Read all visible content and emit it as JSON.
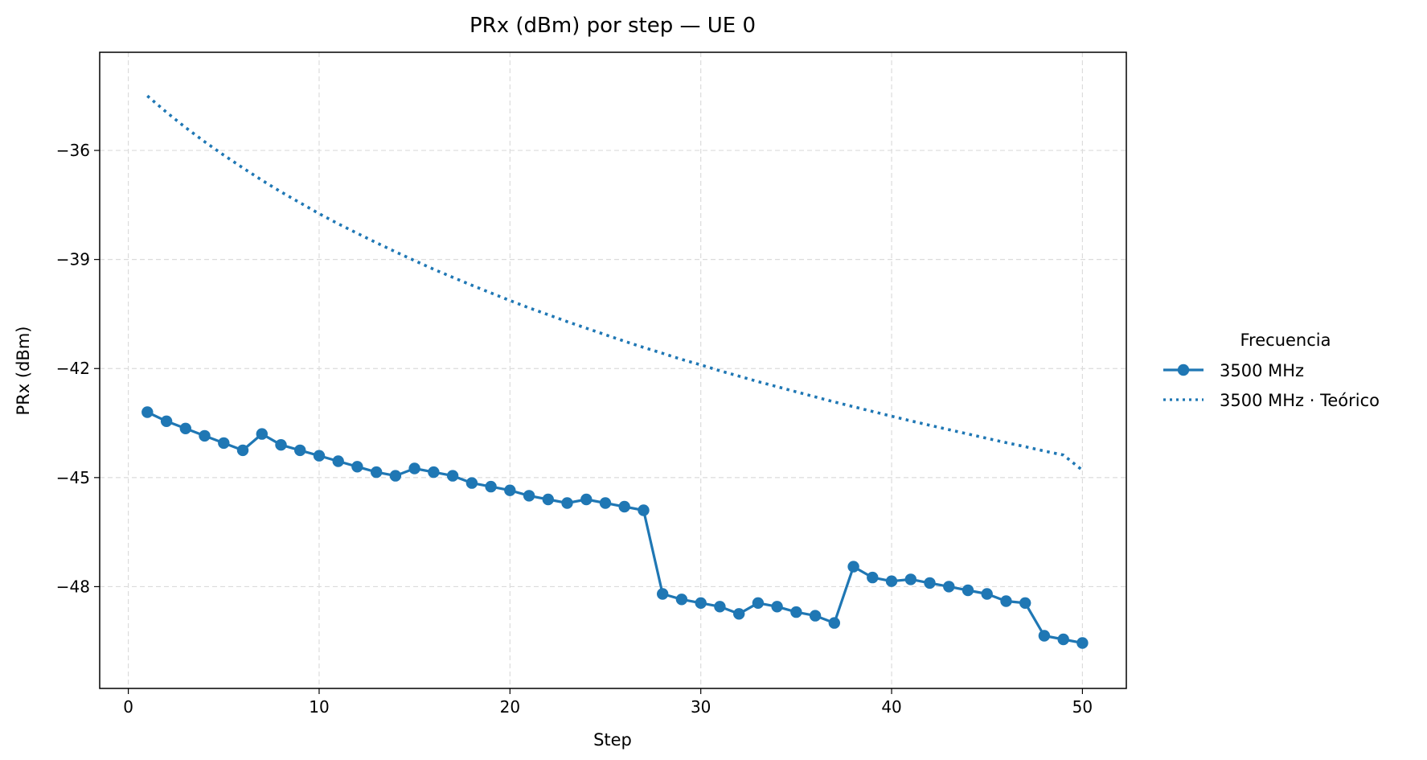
{
  "chart_data": {
    "type": "line",
    "title": "PRx (dBm) por step — UE 0",
    "xlabel": "Step",
    "ylabel": "PRx (dBm)",
    "xlim": [
      -1.5,
      52.3
    ],
    "ylim": [
      -50.8,
      -33.3
    ],
    "xticks": [
      0,
      10,
      20,
      30,
      40,
      50
    ],
    "yticks": [
      -36,
      -39,
      -42,
      -45,
      -48
    ],
    "grid": true,
    "legend": {
      "title": "Frecuencia",
      "placement": "right-outside",
      "entries": [
        "3500 MHz",
        "3500 MHz · Teórico"
      ]
    },
    "colors": {
      "series": "#1f77b4"
    },
    "series": [
      {
        "name": "3500 MHz",
        "style": "solid-marker",
        "x": [
          1,
          2,
          3,
          4,
          5,
          6,
          7,
          8,
          9,
          10,
          11,
          12,
          13,
          14,
          15,
          16,
          17,
          18,
          19,
          20,
          21,
          22,
          23,
          24,
          25,
          26,
          27,
          28,
          29,
          30,
          31,
          32,
          33,
          34,
          35,
          36,
          37,
          38,
          39,
          40,
          41,
          42,
          43,
          44,
          45,
          46,
          47,
          48,
          49,
          50
        ],
        "y": [
          -43.2,
          -43.45,
          -43.65,
          -43.85,
          -44.05,
          -44.25,
          -43.8,
          -44.1,
          -44.25,
          -44.4,
          -44.55,
          -44.7,
          -44.85,
          -44.95,
          -44.75,
          -44.85,
          -44.95,
          -45.15,
          -45.25,
          -45.35,
          -45.5,
          -45.6,
          -45.7,
          -45.6,
          -45.7,
          -45.8,
          -45.9,
          -48.2,
          -48.35,
          -48.45,
          -48.55,
          -48.75,
          -48.45,
          -48.55,
          -48.7,
          -48.8,
          -49.0,
          -47.45,
          -47.75,
          -47.85,
          -47.8,
          -47.9,
          -48.0,
          -48.1,
          -48.2,
          -48.4,
          -48.45,
          -49.35,
          -49.45,
          -49.55
        ]
      },
      {
        "name": "3500 MHz · Teórico",
        "style": "dotted",
        "x": [
          1,
          2,
          3,
          4,
          5,
          6,
          7,
          8,
          9,
          10,
          11,
          12,
          13,
          14,
          15,
          16,
          17,
          18,
          19,
          20,
          21,
          22,
          23,
          24,
          25,
          26,
          27,
          28,
          29,
          30,
          31,
          32,
          33,
          34,
          35,
          36,
          37,
          38,
          39,
          40,
          41,
          42,
          43,
          44,
          45,
          46,
          47,
          48,
          49,
          50
        ],
        "y": [
          -34.5,
          -34.95,
          -35.37,
          -35.76,
          -36.13,
          -36.48,
          -36.82,
          -37.14,
          -37.44,
          -37.74,
          -38.02,
          -38.28,
          -38.54,
          -38.79,
          -39.03,
          -39.27,
          -39.49,
          -39.71,
          -39.92,
          -40.13,
          -40.33,
          -40.52,
          -40.71,
          -40.89,
          -41.07,
          -41.25,
          -41.42,
          -41.58,
          -41.75,
          -41.9,
          -42.06,
          -42.21,
          -42.36,
          -42.5,
          -42.64,
          -42.78,
          -42.92,
          -43.05,
          -43.18,
          -43.31,
          -43.44,
          -43.56,
          -43.68,
          -43.8,
          -43.92,
          -44.04,
          -44.15,
          -44.27,
          -44.38,
          -44.8
        ]
      }
    ]
  }
}
